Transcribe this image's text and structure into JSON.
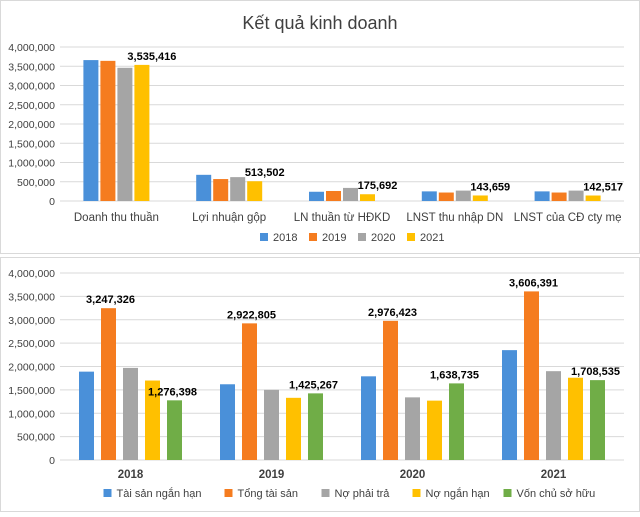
{
  "chart_data": [
    {
      "type": "bar",
      "title": "Kết quả kinh doanh",
      "categories": [
        "Doanh thu thuần",
        "Lợi nhuận gộp",
        "LN thuần từ HĐKD",
        "LNST thu nhập DN",
        "LNST của CĐ cty mẹ"
      ],
      "series": [
        {
          "name": "2018",
          "color": "#4a90d9",
          "values": [
            3660000,
            680000,
            240000,
            250000,
            250000
          ]
        },
        {
          "name": "2019",
          "color": "#f57c1f",
          "values": [
            3640000,
            570000,
            260000,
            220000,
            220000
          ]
        },
        {
          "name": "2020",
          "color": "#a5a5a5",
          "values": [
            3460000,
            620000,
            340000,
            270000,
            270000
          ]
        },
        {
          "name": "2021",
          "color": "#ffc000",
          "values": [
            3535416,
            513502,
            175692,
            143659,
            142517
          ]
        }
      ],
      "data_labels": {
        "series": "2021",
        "texts": [
          "3,535,416",
          "513,502",
          "175,692",
          "143,659",
          "142,517"
        ]
      },
      "ylim": [
        0,
        4000000
      ],
      "yticks": [
        "0",
        "500,000",
        "1,000,000",
        "1,500,000",
        "2,000,000",
        "2,500,000",
        "3,000,000",
        "3,500,000",
        "4,000,000"
      ],
      "grid": true,
      "legend_position": "bottom"
    },
    {
      "type": "bar",
      "title": "",
      "categories": [
        "2018",
        "2019",
        "2020",
        "2021"
      ],
      "series": [
        {
          "name": "Tài sản ngắn hạn",
          "color": "#4a90d9",
          "values": [
            1890000,
            1620000,
            1790000,
            2350000
          ]
        },
        {
          "name": "Tổng tài sản",
          "color": "#f57c1f",
          "values": [
            3247326,
            2922805,
            2976423,
            3606391
          ]
        },
        {
          "name": "Nợ phải trả",
          "color": "#a5a5a5",
          "values": [
            1970000,
            1500000,
            1340000,
            1900000
          ]
        },
        {
          "name": "Nợ ngắn hạn",
          "color": "#ffc000",
          "values": [
            1700000,
            1330000,
            1270000,
            1760000
          ]
        },
        {
          "name": "Vốn chủ sở hữu",
          "color": "#70ad47",
          "values": [
            1276398,
            1425267,
            1638735,
            1708535
          ]
        }
      ],
      "data_labels": {
        "tong_tai_san": [
          "3,247,326",
          "2,922,805",
          "2,976,423",
          "3,606,391"
        ],
        "von_chu_so_huu": [
          "1,276,398",
          "1,425,267",
          "1,638,735",
          "1,708,535"
        ]
      },
      "ylim": [
        0,
        4000000
      ],
      "yticks": [
        "0",
        "500,000",
        "1,000,000",
        "1,500,000",
        "2,000,000",
        "2,500,000",
        "3,000,000",
        "3,500,000",
        "4,000,000"
      ],
      "grid": true,
      "legend_position": "bottom"
    }
  ]
}
